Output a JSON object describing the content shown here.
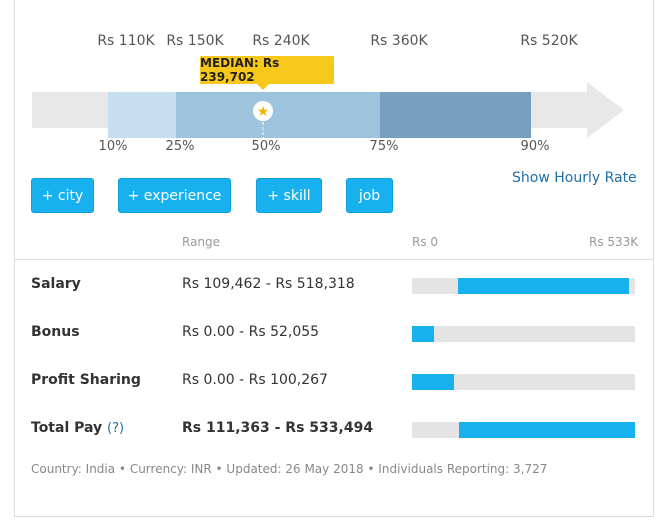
{
  "percentile_values": [
    "Rs 110K",
    "Rs 150K",
    "Rs 240K",
    "Rs 360K",
    "Rs 520K"
  ],
  "percentile_labels": [
    "10%",
    "25%",
    "50%",
    "75%",
    "90%"
  ],
  "median_label": "MEDIAN: Rs 239,702",
  "filters": [
    "+ city",
    "+ experience",
    "+ skill",
    "job"
  ],
  "show_hourly_label": "Show Hourly Rate",
  "table": {
    "range_header": "Range",
    "scale_min": "Rs 0",
    "scale_max": "Rs 533K",
    "scale_max_value": 533494,
    "rows": [
      {
        "label": "Salary",
        "range": "Rs 109,462 - Rs 518,318",
        "min": 109462,
        "max": 518318
      },
      {
        "label": "Bonus",
        "range": "Rs 0.00 - Rs 52,055",
        "min": 0,
        "max": 52055
      },
      {
        "label": "Profit Sharing",
        "range": "Rs 0.00 - Rs 100,267",
        "min": 0,
        "max": 100267
      },
      {
        "label": "Total Pay",
        "help": "(?)",
        "range": "Rs 111,363 - Rs 533,494",
        "min": 111363,
        "max": 533494
      }
    ]
  },
  "footer": "Country: India  •  Currency: INR  •  Updated: 26 May 2018  •  Individuals Reporting: 3,727",
  "colors": {
    "accent": "#17b1f0",
    "median_tag": "#f7c81c",
    "band_light": "#c5dff0",
    "band_mid": "#9ec4dd",
    "band_dark": "#779fbf",
    "arrow_gray": "#e8e8e8"
  }
}
